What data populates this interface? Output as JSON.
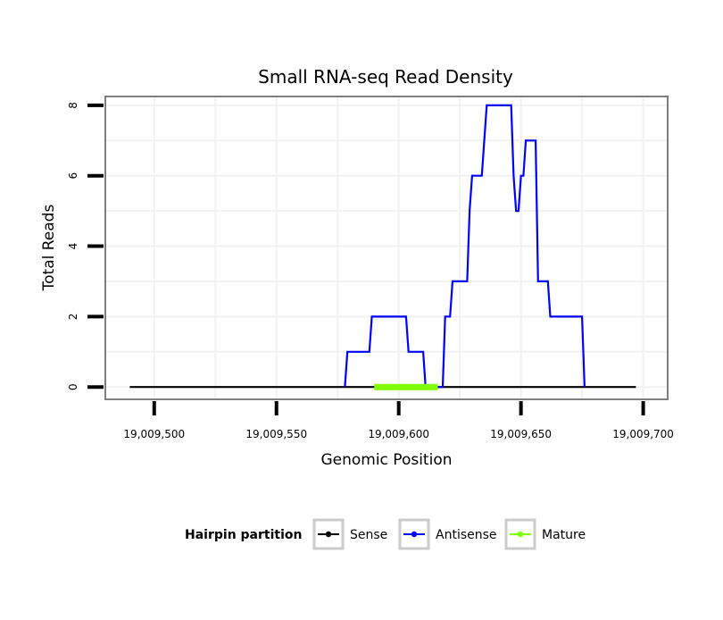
{
  "chart_data": {
    "type": "line",
    "title": "Small RNA-seq Read Density",
    "xlabel": "Genomic Position",
    "ylabel": "Total Reads",
    "xlim": [
      19009480,
      19009710
    ],
    "ylim": [
      -0.35,
      8.25
    ],
    "x_ticks": [
      19009500,
      19009550,
      19009600,
      19009650,
      19009700
    ],
    "x_tick_labels": [
      "19,009,500",
      "19,009,550",
      "19,009,600",
      "19,009,650",
      "19,009,700"
    ],
    "y_ticks": [
      0,
      2,
      4,
      6,
      8
    ],
    "y_tick_labels": [
      "0",
      "2",
      "4",
      "6",
      "8"
    ],
    "grid": true,
    "legend": {
      "title": "Hairpin partition",
      "position": "bottom",
      "entries": [
        "Sense",
        "Antisense",
        "Mature"
      ]
    },
    "series": [
      {
        "name": "Sense",
        "color": "#000000",
        "x": [
          19009490,
          19009697
        ],
        "values": [
          0,
          0
        ]
      },
      {
        "name": "Antisense",
        "color": "#0000ff",
        "x": [
          19009578,
          19009579,
          19009588,
          19009589,
          19009603,
          19009604,
          19009610,
          19009611,
          19009618,
          19009619,
          19009621,
          19009622,
          19009628,
          19009629,
          19009630,
          19009634,
          19009636,
          19009646,
          19009647,
          19009648,
          19009649,
          19009650,
          19009651,
          19009652,
          19009656,
          19009657,
          19009661,
          19009662,
          19009675,
          19009676
        ],
        "values": [
          0,
          1,
          1,
          2,
          2,
          1,
          1,
          0,
          0,
          2,
          2,
          3,
          3,
          5,
          6,
          6,
          8,
          8,
          6,
          5,
          5,
          6,
          6,
          7,
          7,
          3,
          3,
          2,
          2,
          0
        ]
      },
      {
        "name": "Mature",
        "color": "#7fff00",
        "x": [
          19009590,
          19009616
        ],
        "values": [
          0,
          0
        ]
      }
    ]
  }
}
